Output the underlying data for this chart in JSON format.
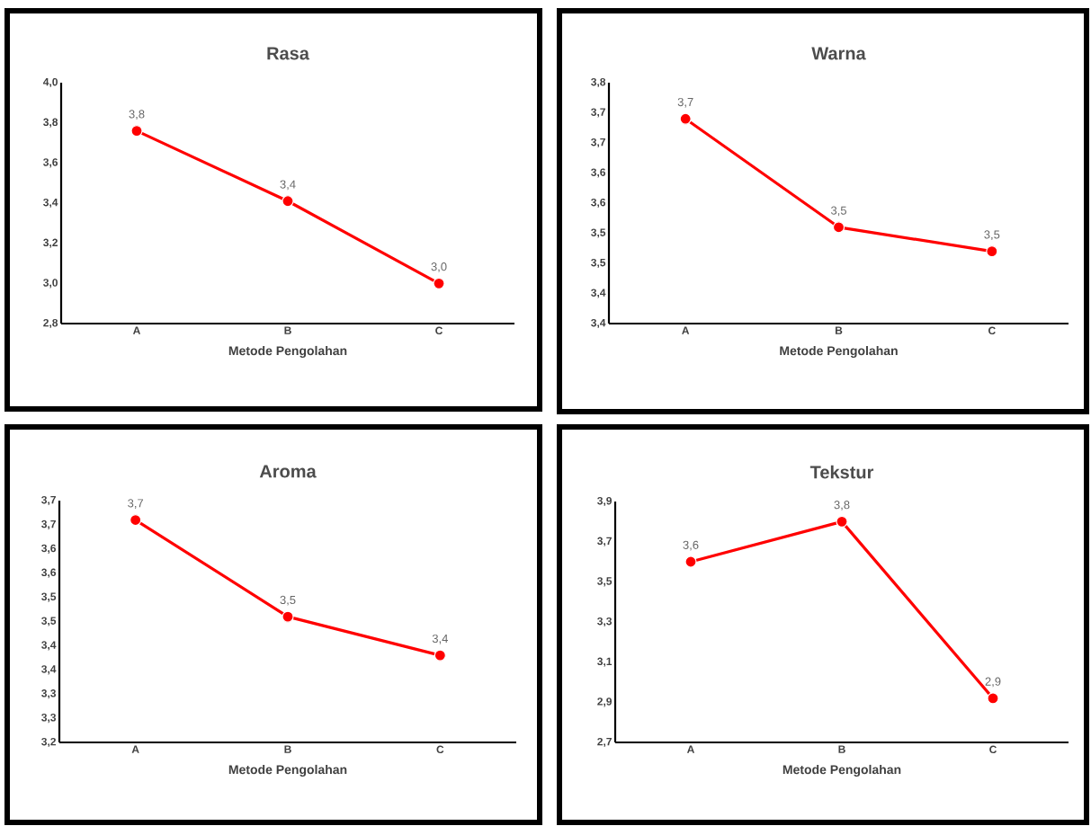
{
  "chart_data": [
    {
      "type": "line",
      "title": "Rasa",
      "xlabel": "Metode Pengolahan",
      "categories": [
        "A",
        "B",
        "C"
      ],
      "values": [
        3.76,
        3.41,
        3.0
      ],
      "value_labels": [
        "3,8",
        "3,4",
        "3,0"
      ],
      "color": "#ff0000",
      "marker": "circle",
      "line_style": "solid",
      "ylim": [
        2.8,
        4.0
      ],
      "yticks": [
        {
          "value": 2.8,
          "label": "2,8"
        },
        {
          "value": 3.0,
          "label": "3,0"
        },
        {
          "value": 3.2,
          "label": "3,2"
        },
        {
          "value": 3.4,
          "label": "3,4"
        },
        {
          "value": 3.6,
          "label": "3,6"
        },
        {
          "value": 3.8,
          "label": "3,8"
        },
        {
          "value": 4.0,
          "label": "4,0"
        }
      ]
    },
    {
      "type": "line",
      "title": "Warna",
      "xlabel": "Metode Pengolahan",
      "categories": [
        "A",
        "B",
        "C"
      ],
      "values": [
        3.69,
        3.51,
        3.47
      ],
      "value_labels": [
        "3,7",
        "3,5",
        "3,5"
      ],
      "color": "#ff0000",
      "marker": "circle",
      "line_style": "solid",
      "ylim": [
        3.35,
        3.75
      ],
      "yticks": [
        {
          "value": 3.35,
          "label": "3,4"
        },
        {
          "value": 3.4,
          "label": "3,4"
        },
        {
          "value": 3.45,
          "label": "3,5"
        },
        {
          "value": 3.5,
          "label": "3,5"
        },
        {
          "value": 3.55,
          "label": "3,6"
        },
        {
          "value": 3.6,
          "label": "3,6"
        },
        {
          "value": 3.65,
          "label": "3,7"
        },
        {
          "value": 3.7,
          "label": "3,7"
        },
        {
          "value": 3.75,
          "label": "3,8"
        }
      ]
    },
    {
      "type": "line",
      "title": "Aroma",
      "xlabel": "Metode Pengolahan",
      "categories": [
        "A",
        "B",
        "C"
      ],
      "values": [
        3.66,
        3.46,
        3.38
      ],
      "value_labels": [
        "3,7",
        "3,5",
        "3,4"
      ],
      "color": "#ff0000",
      "marker": "circle",
      "line_style": "solid",
      "ylim": [
        3.2,
        3.7
      ],
      "yticks": [
        {
          "value": 3.2,
          "label": "3,2"
        },
        {
          "value": 3.25,
          "label": "3,3"
        },
        {
          "value": 3.3,
          "label": "3,3"
        },
        {
          "value": 3.35,
          "label": "3,4"
        },
        {
          "value": 3.4,
          "label": "3,4"
        },
        {
          "value": 3.45,
          "label": "3,5"
        },
        {
          "value": 3.5,
          "label": "3,5"
        },
        {
          "value": 3.55,
          "label": "3,6"
        },
        {
          "value": 3.6,
          "label": "3,6"
        },
        {
          "value": 3.65,
          "label": "3,7"
        },
        {
          "value": 3.7,
          "label": "3,7"
        }
      ]
    },
    {
      "type": "line",
      "title": "Tekstur",
      "xlabel": "Metode Pengolahan",
      "categories": [
        "A",
        "B",
        "C"
      ],
      "values": [
        3.6,
        3.8,
        2.92
      ],
      "value_labels": [
        "3,6",
        "3,8",
        "2,9"
      ],
      "color": "#ff0000",
      "marker": "circle",
      "line_style": "solid",
      "ylim": [
        2.7,
        3.9
      ],
      "yticks": [
        {
          "value": 2.7,
          "label": "2,7"
        },
        {
          "value": 2.9,
          "label": "2,9"
        },
        {
          "value": 3.1,
          "label": "3,1"
        },
        {
          "value": 3.3,
          "label": "3,3"
        },
        {
          "value": 3.5,
          "label": "3,5"
        },
        {
          "value": 3.7,
          "label": "3,7"
        },
        {
          "value": 3.9,
          "label": "3,9"
        }
      ]
    }
  ]
}
